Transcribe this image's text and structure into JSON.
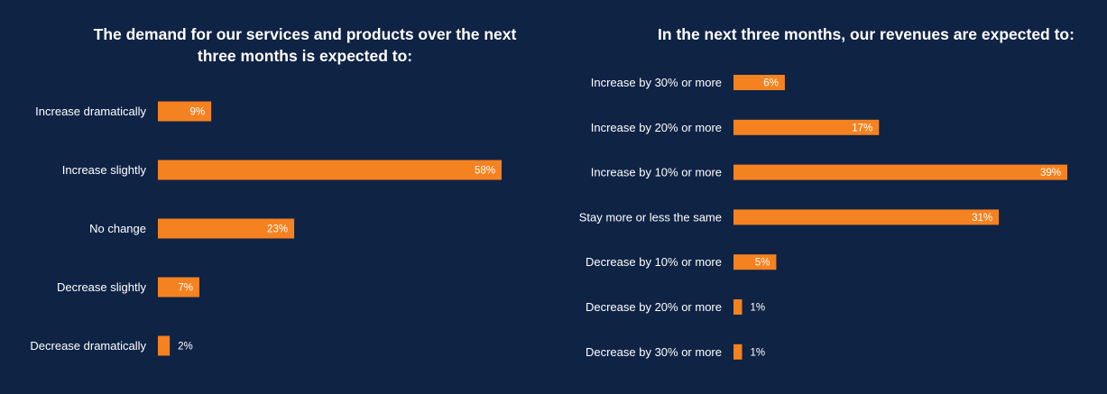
{
  "colors": {
    "background": "#0f2345",
    "bar": "#f58220",
    "text": "#ffffff"
  },
  "chart_data": [
    {
      "type": "bar",
      "orientation": "horizontal",
      "title": "The demand for our services and products over the next three months is expected to:",
      "categories": [
        "Increase dramatically",
        "Increase slightly",
        "No change",
        "Decrease slightly",
        "Decrease dramatically"
      ],
      "values": [
        9,
        58,
        23,
        7,
        2
      ],
      "value_labels": [
        "9%",
        "58%",
        "23%",
        "7%",
        "2%"
      ],
      "unit": "%",
      "xlim": [
        0,
        60
      ],
      "grid": false,
      "legend": "none"
    },
    {
      "type": "bar",
      "orientation": "horizontal",
      "title": "In the next three months, our revenues are expected to:",
      "categories": [
        "Increase by 30% or more",
        "Increase by 20% or more",
        "Increase by 10% or more",
        "Stay more or less the same",
        "Decrease by 10% or more",
        "Decrease by 20% or more",
        "Decrease by 30% or more"
      ],
      "values": [
        6,
        17,
        39,
        31,
        5,
        1,
        1
      ],
      "value_labels": [
        "6%",
        "17%",
        "39%",
        "31%",
        "5%",
        "1%",
        "1%"
      ],
      "unit": "%",
      "xlim": [
        0,
        40
      ],
      "grid": false,
      "legend": "none"
    }
  ]
}
